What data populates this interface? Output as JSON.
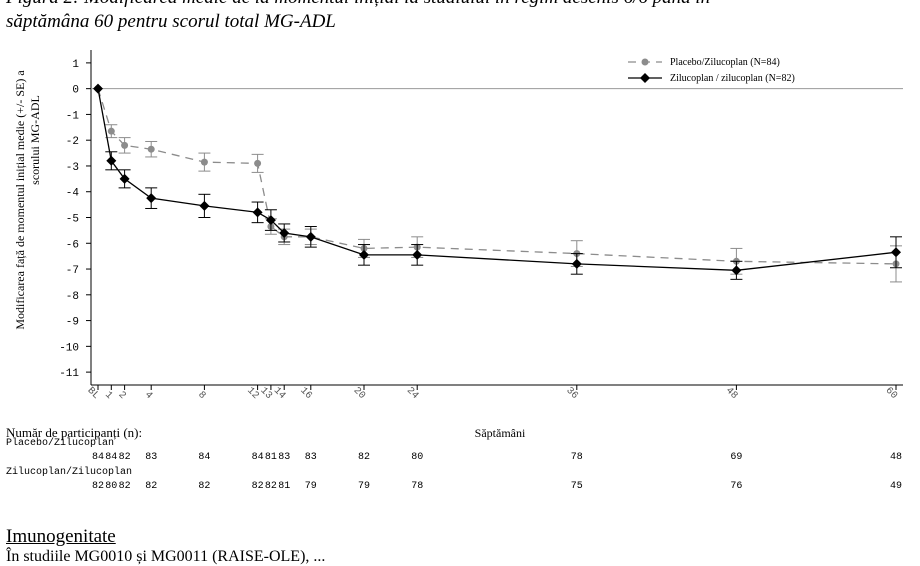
{
  "caption": {
    "line1": "Figura 2: Modificarea medie de la momentul inițial la studiului în regim deschis 6/6 până în",
    "line2": "săptămâna 60 pentru scorul total MG-ADL"
  },
  "participants_label": "Număr de participanți (n):",
  "footer": {
    "heading": "Imunogenitate",
    "text": "În studiile MG0010 și MG0011 (RAISE-OLE), ..."
  },
  "chart_data": {
    "type": "line",
    "x_labels": [
      "BL",
      "1",
      "2",
      "4",
      "8",
      "12",
      "13",
      "14",
      "16",
      "20",
      "24",
      "36",
      "48",
      "60"
    ],
    "x": [
      0,
      1,
      2,
      4,
      8,
      12,
      13,
      14,
      16,
      20,
      24,
      36,
      48,
      60
    ],
    "xlabel": "Săptămâni",
    "ylabel_lines": [
      "Modificarea față de momentul inițial medie (+/- SE) a",
      "scorului MG-ADL"
    ],
    "ylim": [
      -11.5,
      1.5
    ],
    "yticks": [
      1,
      0,
      -1,
      -2,
      -3,
      -4,
      -5,
      -6,
      -7,
      -8,
      -9,
      -10,
      -11
    ],
    "reference_line_y": 0,
    "legend_position": "top-right",
    "series": [
      {
        "name": "Placebo/Zilucoplan (N=84)",
        "color": "#8c8c8c",
        "dashed": true,
        "marker": "circle",
        "y": [
          0,
          -1.65,
          -2.2,
          -2.35,
          -2.85,
          -2.9,
          -5.35,
          -5.75,
          -5.75,
          -6.2,
          -6.15,
          -6.4,
          -6.7,
          -6.8
        ],
        "se": [
          0,
          0.25,
          0.3,
          0.3,
          0.35,
          0.35,
          0.3,
          0.3,
          0.3,
          0.35,
          0.4,
          0.5,
          0.5,
          0.7
        ]
      },
      {
        "name": "Zilucoplan / zilucoplan (N=82)",
        "color": "#000000",
        "dashed": false,
        "marker": "diamond",
        "y": [
          0,
          -2.8,
          -3.5,
          -4.25,
          -4.55,
          -4.8,
          -5.1,
          -5.6,
          -5.75,
          -6.45,
          -6.45,
          -6.8,
          -7.05,
          -6.35
        ],
        "se": [
          0,
          0.35,
          0.35,
          0.4,
          0.45,
          0.4,
          0.4,
          0.35,
          0.4,
          0.4,
          0.4,
          0.4,
          0.35,
          0.6
        ]
      }
    ],
    "participants": [
      {
        "label": "Placebo/Zilucoplan",
        "counts": [
          "84",
          "84",
          "82",
          "83",
          "84",
          "84",
          "81",
          "83",
          "83",
          "82",
          "80",
          "78",
          "69",
          "48"
        ]
      },
      {
        "label": "Zilucoplan/Zilucoplan",
        "counts": [
          "82",
          "80",
          "82",
          "82",
          "82",
          "82",
          "82",
          "81",
          "79",
          "79",
          "78",
          "75",
          "76",
          "49"
        ]
      }
    ]
  }
}
